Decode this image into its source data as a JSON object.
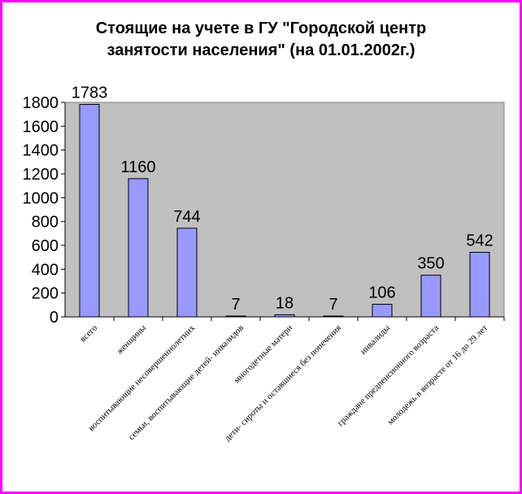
{
  "chart_data": {
    "type": "bar",
    "title_lines": [
      "Стоящие на учете в ГУ \"Городской центр",
      "занятости населения\" (на 01.01.2002г.)"
    ],
    "categories": [
      "всего",
      "женщины",
      "воспитывающие несовершеннолетних",
      "семьи, воспитывающие детей- инвалидов",
      "многодетные матери",
      "дети- сироты и оставшиеся без попечения",
      "инвалиды",
      "граждане предпенсионного возраста",
      "молодежь в возрасте от 16 до 29 лет"
    ],
    "values": [
      1783,
      1160,
      744,
      7,
      18,
      7,
      106,
      350,
      542
    ],
    "yticks": [
      0,
      200,
      400,
      600,
      800,
      1000,
      1200,
      1400,
      1600,
      1800
    ],
    "ylim": [
      0,
      1800
    ],
    "grid": false,
    "legend": false,
    "colors": {
      "bar": "#9999ff",
      "plot_bg": "#c0c0c0",
      "border": "#ff00ff"
    }
  }
}
